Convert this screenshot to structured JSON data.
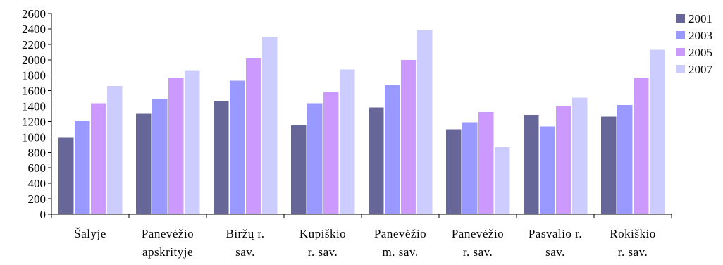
{
  "chart_data": {
    "type": "bar",
    "categories": [
      [
        "Šalyje"
      ],
      [
        "Panevėžio",
        "apskrityje"
      ],
      [
        "Biržų r.",
        "sav."
      ],
      [
        "Kupiškio",
        "r. sav."
      ],
      [
        "Panevėžio",
        "m. sav."
      ],
      [
        "Panevėžio",
        "r. sav."
      ],
      [
        "Pasvalio r.",
        "sav."
      ],
      [
        "Rokiškio",
        "r. sav."
      ]
    ],
    "series": [
      {
        "name": "2001",
        "color": "#666699",
        "values": [
          990,
          1300,
          1470,
          1155,
          1380,
          1100,
          1285,
          1265
        ]
      },
      {
        "name": "2003",
        "color": "#9999ff",
        "values": [
          1210,
          1490,
          1730,
          1435,
          1675,
          1190,
          1135,
          1415
        ]
      },
      {
        "name": "2005",
        "color": "#cc99ff",
        "values": [
          1435,
          1765,
          2020,
          1585,
          2000,
          1325,
          1400,
          1765
        ]
      },
      {
        "name": "2007",
        "color": "#ccccff",
        "values": [
          1660,
          1855,
          2295,
          1875,
          2380,
          865,
          1510,
          2130
        ]
      }
    ],
    "yticks": [
      0,
      200,
      400,
      600,
      800,
      1000,
      1200,
      1400,
      1600,
      1800,
      2000,
      2200,
      2400,
      2600
    ],
    "ylim": [
      0,
      2600
    ],
    "grid": false,
    "legend_position": "top-right",
    "title": "",
    "xlabel": "",
    "ylabel": ""
  }
}
